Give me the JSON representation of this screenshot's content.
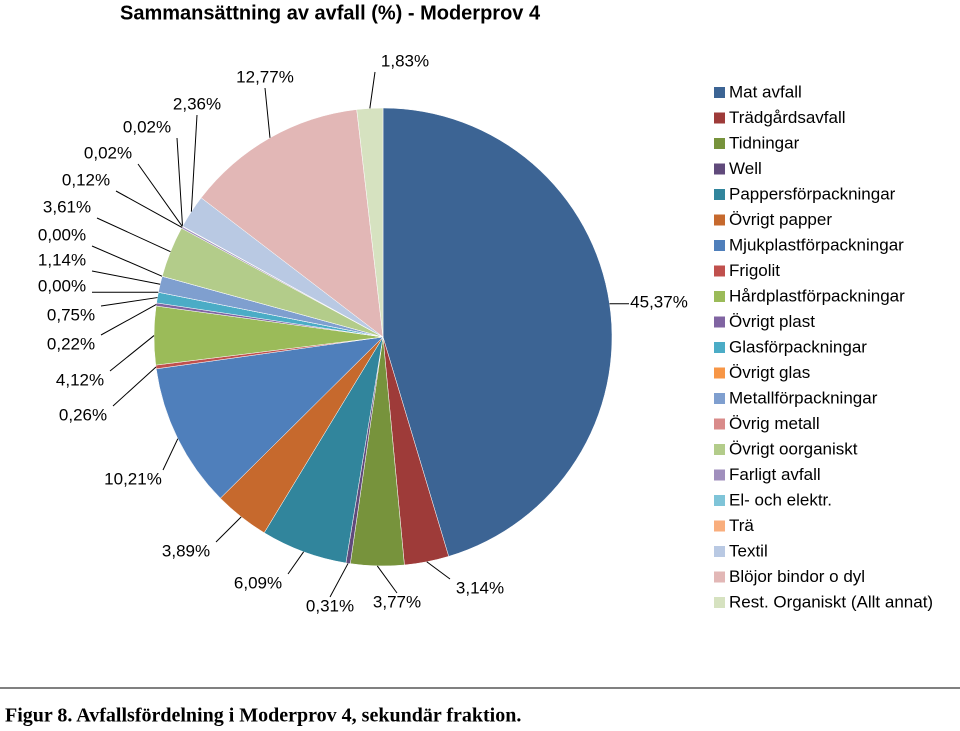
{
  "chart_data": {
    "type": "pie",
    "title": "Sammansättning av avfall (%) - Moderprov 4",
    "categories": [
      "Mat avfall",
      "Trädgårdsavfall",
      "Tidningar",
      "Well",
      "Pappersförpackningar",
      "Övrigt papper",
      "Mjukplastförpackningar",
      "Frigolit",
      "Hårdplastförpackningar",
      "Övrigt plast",
      "Glasförpackningar",
      "Övrigt glas",
      "Metallförpackningar",
      "Övrig metall",
      "Övrigt oorganiskt",
      "Farligt avfall",
      "El- och elektr.",
      "Trä",
      "Textil",
      "Blöjor bindor o dyl",
      "Rest. Organiskt (Allt annat)"
    ],
    "values": [
      45.37,
      3.14,
      3.77,
      0.31,
      6.09,
      3.89,
      10.21,
      0.26,
      4.12,
      0.22,
      0.75,
      0.0,
      1.14,
      0.0,
      3.61,
      0.12,
      0.02,
      0.02,
      2.36,
      12.77,
      1.83
    ],
    "value_labels": [
      "45,37%",
      "3,14%",
      "3,77%",
      "0,31%",
      "6,09%",
      "3,89%",
      "10,21%",
      "0,26%",
      "4,12%",
      "0,22%",
      "0,75%",
      "0,00%",
      "1,14%",
      "0,00%",
      "3,61%",
      "0,12%",
      "0,02%",
      "0,02%",
      "2,36%",
      "12,77%",
      "1,83%"
    ],
    "colors": [
      "#3c6494",
      "#9e3b39",
      "#77933c",
      "#604a7b",
      "#31859c",
      "#c6692d",
      "#4f7fbb",
      "#c0504d",
      "#9bbb59",
      "#8064a2",
      "#4bacc6",
      "#f79646",
      "#7f9fcf",
      "#d98b8a",
      "#b3cc8a",
      "#a08fbd",
      "#7fc4d8",
      "#f9ae7d",
      "#b9c9e3",
      "#e2b7b6",
      "#d6e2c0"
    ],
    "legend": "right"
  },
  "caption": "Figur 8. Avfallsfördelning i Moderprov 4, sekundär fraktion."
}
